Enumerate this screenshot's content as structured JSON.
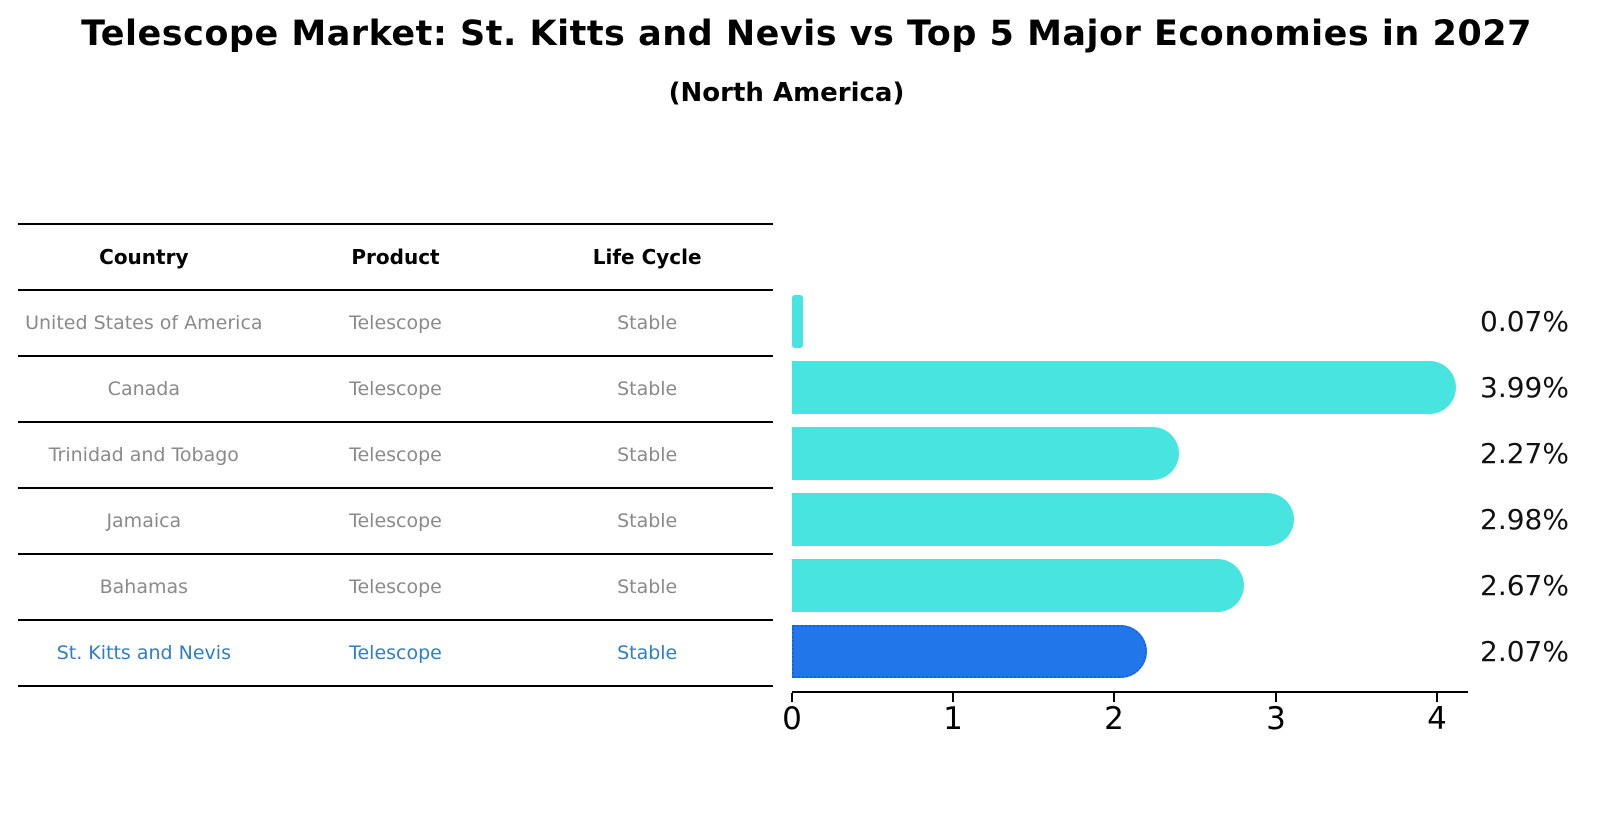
{
  "title": "Telescope Market: St. Kitts and Nevis vs Top 5 Major Economies in 2027",
  "subtitle": "(North America)",
  "table": {
    "headers": [
      "Country",
      "Product",
      "Life Cycle"
    ],
    "rows": [
      {
        "country": "United States of America",
        "product": "Telescope",
        "life_cycle": "Stable",
        "highlight": false
      },
      {
        "country": "Canada",
        "product": "Telescope",
        "life_cycle": "Stable",
        "highlight": false
      },
      {
        "country": "Trinidad and Tobago",
        "product": "Telescope",
        "life_cycle": "Stable",
        "highlight": false
      },
      {
        "country": "Jamaica",
        "product": "Telescope",
        "life_cycle": "Stable",
        "highlight": false
      },
      {
        "country": "Bahamas",
        "product": "Telescope",
        "life_cycle": "Stable",
        "highlight": false
      },
      {
        "country": "St. Kitts and Nevis",
        "product": "Telescope",
        "life_cycle": "Stable",
        "highlight": true
      }
    ]
  },
  "chart_data": {
    "type": "bar",
    "orientation": "horizontal",
    "title": "Telescope Market: St. Kitts and Nevis vs Top 5 Major Economies in 2027 (North America)",
    "categories": [
      "United States of America",
      "Canada",
      "Trinidad and Tobago",
      "Jamaica",
      "Bahamas",
      "St. Kitts and Nevis"
    ],
    "values": [
      0.07,
      3.99,
      2.27,
      2.98,
      2.67,
      2.07
    ],
    "value_labels": [
      "0.07%",
      "3.99%",
      "2.27%",
      "2.98%",
      "2.67%",
      "2.07%"
    ],
    "unit": "percent",
    "x_ticks": [
      "0",
      "1",
      "2",
      "3",
      "4"
    ],
    "xlim": [
      0,
      4.2
    ],
    "grid": false,
    "legend": false,
    "highlight_index": 5,
    "bar_color": "#48E5E0",
    "highlight_bar_color": "#2176E9",
    "highlight_border_color": "#1563DB"
  },
  "colors": {
    "row_text": "#8a8a8a",
    "highlight_text": "#2e7ec9",
    "header_text": "#000000",
    "line": "#000000",
    "value_label_text": "#111111"
  }
}
